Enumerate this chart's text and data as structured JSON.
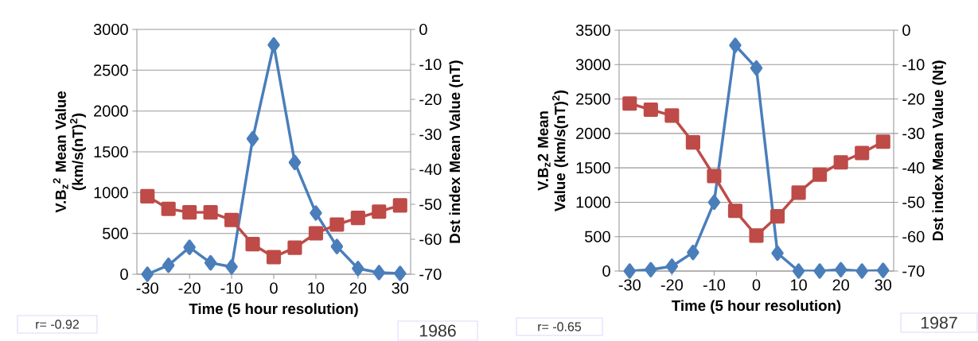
{
  "chart_data": [
    {
      "type": "line",
      "xlabel": "Time (5 hour resolution)",
      "ylabel": "V.B$_{z}$$^{2}$ Mean Value (km/s(nT)$^{2}$)",
      "y2label": "Dst index Mean Value (nT)",
      "x": [
        -30,
        -25,
        -20,
        -15,
        -10,
        -5,
        0,
        5,
        10,
        15,
        20,
        25,
        30
      ],
      "xlim": [
        -32.5,
        32.5
      ],
      "xticks": [
        -30,
        -20,
        -10,
        0,
        10,
        20,
        30
      ],
      "ylim": [
        0,
        3000
      ],
      "yticks": [
        0,
        500,
        1000,
        1500,
        2000,
        2500,
        3000
      ],
      "y2lim": [
        -70,
        0
      ],
      "y2ticks": [
        -70,
        -60,
        -50,
        -40,
        -30,
        -20,
        -10,
        0
      ],
      "grid": "y",
      "series": [
        {
          "color": "#4a7ebb",
          "marker": "diamond",
          "values": [
            0,
            110,
            330,
            140,
            90,
            1660,
            2810,
            1370,
            750,
            340,
            70,
            20,
            10
          ]
        },
        {
          "color": "#be4b48",
          "marker": "square",
          "axis": "y2",
          "values": [
            -47.7,
            -51.3,
            -52.3,
            -52.3,
            -54.5,
            -61.4,
            -65.1,
            -62.4,
            -58.3,
            -55.8,
            -53.9,
            -52.1,
            -50.3
          ]
        }
      ],
      "annotations": [
        "r= -0.92",
        "1986"
      ]
    },
    {
      "type": "line",
      "xlabel": "Time (5 hour resolution)",
      "ylabel": "V.B$_{z}$2 Mean Value (km/s(nT)$^{2}$)",
      "y2label": "Dst index Mean Value (Nt)",
      "x": [
        -30,
        -25,
        -20,
        -15,
        -10,
        -5,
        0,
        5,
        10,
        15,
        20,
        25,
        30
      ],
      "xlim": [
        -32.5,
        32.5
      ],
      "xticks": [
        -30,
        -20,
        -10,
        0,
        10,
        20,
        30
      ],
      "ylim": [
        0,
        3500
      ],
      "yticks": [
        0,
        500,
        1000,
        1500,
        2000,
        2500,
        3000,
        3500
      ],
      "y2lim": [
        -70,
        0
      ],
      "y2ticks": [
        -70,
        -60,
        -50,
        -40,
        -30,
        -20,
        -10,
        0
      ],
      "grid": "y",
      "series": [
        {
          "color": "#4a7ebb",
          "marker": "diamond",
          "values": [
            0,
            20,
            70,
            270,
            1000,
            3280,
            2950,
            260,
            0,
            0,
            20,
            0,
            10
          ]
        },
        {
          "color": "#be4b48",
          "marker": "square",
          "axis": "y2",
          "values": [
            -21.3,
            -23.1,
            -24.8,
            -32.6,
            -42.4,
            -52.5,
            -59.7,
            -54.1,
            -47.2,
            -42.0,
            -38.4,
            -35.7,
            -32.4
          ]
        }
      ],
      "annotations": [
        "r= -0.65",
        "1987"
      ]
    }
  ]
}
